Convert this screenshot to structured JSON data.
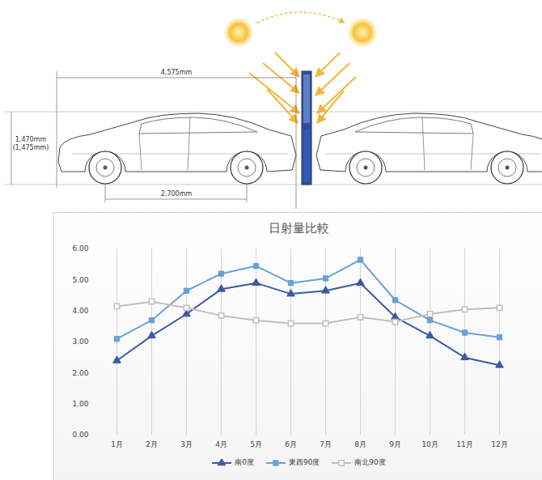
{
  "chart_data": {
    "type": "line",
    "title": "日射量比較",
    "categories": [
      "1月",
      "2月",
      "3月",
      "4月",
      "5月",
      "6月",
      "7月",
      "8月",
      "9月",
      "10月",
      "11月",
      "12月"
    ],
    "series": [
      {
        "name": "南0度",
        "color": "#3a5ba0",
        "marker": "triangle",
        "values": [
          2.4,
          3.2,
          3.9,
          4.7,
          4.9,
          4.55,
          4.65,
          4.9,
          3.8,
          3.2,
          2.5,
          2.25
        ]
      },
      {
        "name": "東西90度",
        "color": "#6a9fd8",
        "marker": "square",
        "values": [
          3.1,
          3.7,
          4.65,
          5.2,
          5.45,
          4.9,
          5.05,
          5.65,
          4.35,
          3.7,
          3.3,
          3.15
        ]
      },
      {
        "name": "南北90度",
        "color": "#bfbfbf",
        "marker": "square-open",
        "values": [
          4.15,
          4.3,
          4.1,
          3.85,
          3.7,
          3.6,
          3.6,
          3.8,
          3.65,
          3.9,
          4.05,
          4.1
        ]
      }
    ],
    "ylim": [
      0,
      6
    ],
    "yticks": [
      {
        "value": 0,
        "label": "0.00"
      },
      {
        "value": 1,
        "label": "1.00"
      },
      {
        "value": 2,
        "label": "2.00"
      },
      {
        "value": 3,
        "label": "3.00"
      },
      {
        "value": 4,
        "label": "4.00"
      },
      {
        "value": 5,
        "label": "5.00"
      },
      {
        "value": 6,
        "label": "6.00"
      }
    ],
    "grid": true,
    "legend": "bottom"
  },
  "diagram": {
    "dimensions": {
      "length": "4,575mm",
      "height": [
        "1,470mm",
        "(1,475mm)"
      ],
      "wheelbase": "2,700mm"
    }
  }
}
